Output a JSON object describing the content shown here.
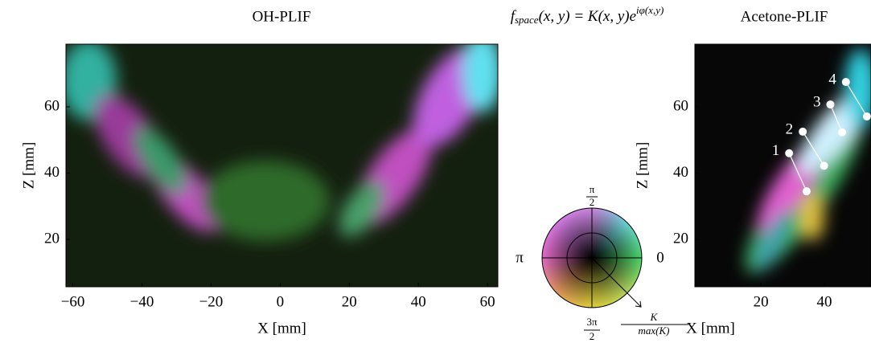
{
  "chart_data": [
    {
      "type": "image",
      "title": "OH-PLIF",
      "xlabel": "X [mm]",
      "ylabel": "Z [mm]",
      "xlim": [
        -62,
        63
      ],
      "ylim": [
        5.7,
        78.9
      ],
      "xticks": [
        {
          "value": -60,
          "label": "−60"
        },
        {
          "value": -40,
          "label": "−40"
        },
        {
          "value": -20,
          "label": "−20"
        },
        0,
        20,
        40,
        60
      ],
      "yticks": [
        20,
        40,
        60
      ]
    },
    {
      "type": "image",
      "title": "Acetone-PLIF",
      "xlabel": "X [mm]",
      "ylabel": "Z [mm]",
      "xlim": [
        -0.8,
        54.7
      ],
      "ylim": [
        5.7,
        78.9
      ],
      "xticks": [
        20,
        40
      ],
      "yticks": [
        20,
        40,
        60
      ],
      "annotations": [
        {
          "label": "1",
          "x": [
            28.9,
            34.4
          ],
          "y": [
            46.0,
            34.5
          ]
        },
        {
          "label": "2",
          "x": [
            33.2,
            39.9
          ],
          "y": [
            52.5,
            42.2
          ]
        },
        {
          "label": "3",
          "x": [
            41.9,
            45.6
          ],
          "y": [
            60.7,
            52.3
          ]
        },
        {
          "label": "4",
          "x": [
            46.8,
            53.4
          ],
          "y": [
            67.5,
            57.1
          ]
        }
      ]
    }
  ],
  "formula": {
    "f": "f",
    "sub": "space",
    "mid": "(x, y) = K(x, y)e",
    "sup": "iφ(x,y)"
  },
  "colorwheel": {
    "top": {
      "num": "π",
      "den": "2"
    },
    "left": "π",
    "right": "0",
    "bottom": {
      "num": "3π",
      "den": "2"
    },
    "radius": {
      "num": "K",
      "den": "max(K)"
    }
  }
}
